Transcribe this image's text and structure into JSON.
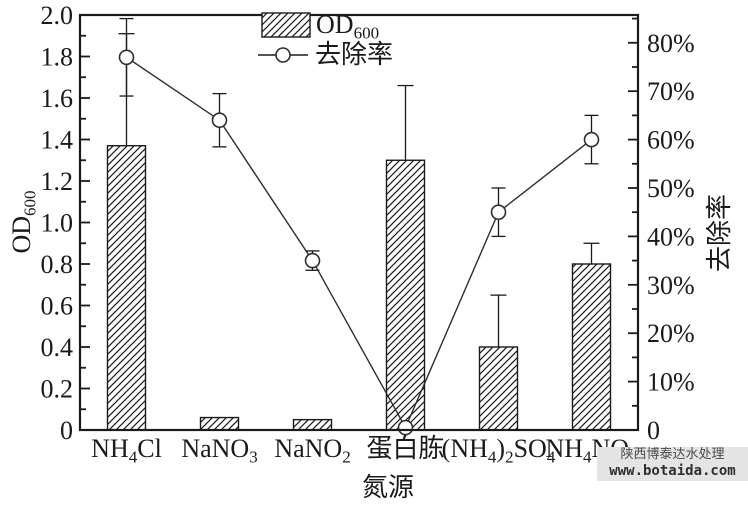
{
  "watermark": {
    "line1": "陕西博泰达水处理",
    "line2": "www.botaida.com",
    "bg": "#e4e4e4",
    "fg": "#4a4a4a"
  },
  "colors": {
    "axis": "#1a1a1a",
    "series_line": "#2e2e2e",
    "bar_fill": "#ffffff",
    "background": "#ffffff"
  },
  "chart_data": {
    "type": "combo-bar-line",
    "title": "",
    "xlabel": "氮源",
    "categories": [
      "NH4Cl",
      "NaNO3",
      "NaNO2",
      "蛋白胨",
      "(NH4)2SO4",
      "NH4NO3"
    ],
    "categories_rich": [
      [
        {
          "t": "NH"
        },
        {
          "t": "4",
          "sub": true
        },
        {
          "t": "Cl"
        }
      ],
      [
        {
          "t": "NaNO"
        },
        {
          "t": "3",
          "sub": true
        }
      ],
      [
        {
          "t": "NaNO"
        },
        {
          "t": "2",
          "sub": true
        }
      ],
      [
        {
          "t": "蛋白胨"
        }
      ],
      [
        {
          "t": "(NH"
        },
        {
          "t": "4",
          "sub": true
        },
        {
          "t": ")"
        },
        {
          "t": "2",
          "sub": true
        },
        {
          "t": "SO"
        },
        {
          "t": "4",
          "sub": true
        }
      ],
      [
        {
          "t": "NH"
        },
        {
          "t": "4",
          "sub": true
        },
        {
          "t": "NO"
        },
        {
          "t": "3",
          "sub": true
        }
      ]
    ],
    "series": [
      {
        "name": "OD600",
        "name_rich": [
          {
            "t": "OD"
          },
          {
            "t": "600",
            "sub": true
          }
        ],
        "type": "bar",
        "axis": "left",
        "values": [
          1.37,
          0.06,
          0.05,
          1.3,
          0.4,
          0.8
        ],
        "errors_plus": [
          0.54,
          0,
          0,
          0.36,
          0.25,
          0.1
        ],
        "style": "diagonal-hatch"
      },
      {
        "name": "去除率",
        "name_rich": [
          {
            "t": "去除率"
          }
        ],
        "type": "line",
        "axis": "right",
        "values_pct": [
          77,
          64,
          35,
          0.5,
          45,
          60
        ],
        "errors_pct": [
          8,
          5.5,
          2,
          0.5,
          5,
          5
        ],
        "marker": "open-circle"
      }
    ],
    "left_axis": {
      "label": "OD600",
      "label_rich": [
        {
          "t": "OD"
        },
        {
          "t": "600",
          "sub": true
        }
      ],
      "min": 0,
      "max": 2.0,
      "major_step": 0.2,
      "minor_step": 0.1,
      "tick_labels": [
        "0",
        "0.2",
        "0.4",
        "0.6",
        "0.8",
        "1.0",
        "1.2",
        "1.4",
        "1.6",
        "1.8",
        "2.0"
      ]
    },
    "right_axis": {
      "label": "去除率",
      "min": 0,
      "max_labeled": 80,
      "max_visible": 85.74,
      "major_step": 10,
      "minor_step": 5,
      "tick_labels": [
        "0",
        "10%",
        "20%",
        "30%",
        "40%",
        "50%",
        "60%",
        "70%",
        "80%"
      ]
    },
    "legend": {
      "position": "top-center",
      "entries": [
        {
          "label": "OD600",
          "swatch": "hatched-box"
        },
        {
          "label": "去除率",
          "swatch": "line-open-circle"
        }
      ]
    },
    "grid": false,
    "frame": true
  }
}
